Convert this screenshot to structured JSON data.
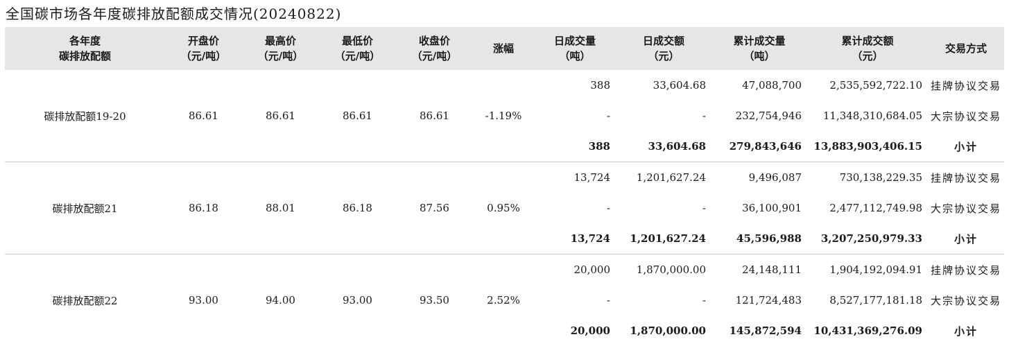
{
  "title": "全国碳市场各年度碳排放配额成交情况(20240822)",
  "header": {
    "c1": [
      "各年度",
      "碳排放配额"
    ],
    "c2": [
      "开盘价",
      "（元/吨）"
    ],
    "c3": [
      "最高价",
      "（元/吨）"
    ],
    "c4": [
      "最低价",
      "（元/吨）"
    ],
    "c5": [
      "收盘价",
      "（元/吨）"
    ],
    "c6": [
      "涨幅"
    ],
    "c7": [
      "日成交量",
      "（吨）"
    ],
    "c8": [
      "日成交额",
      "（元）"
    ],
    "c9": [
      "累计成交量",
      "（吨）"
    ],
    "c10": [
      "累计成交额",
      "（元）"
    ],
    "c11": [
      "交易方式"
    ]
  },
  "groups": [
    {
      "name": "碳排放配额19-20",
      "open": "86.61",
      "high": "86.61",
      "low": "86.61",
      "close": "86.61",
      "change": "-1.19%",
      "rows": [
        {
          "vol": "388",
          "amt": "33,604.68",
          "cum_vol": "47,088,700",
          "cum_amt": "2,535,592,722.10",
          "method": "挂牌协议交易"
        },
        {
          "vol": "-",
          "amt": "-",
          "cum_vol": "232,754,946",
          "cum_amt": "11,348,310,684.05",
          "method": "大宗协议交易"
        },
        {
          "vol": "388",
          "amt": "33,604.68",
          "cum_vol": "279,843,646",
          "cum_amt": "13,883,903,406.15",
          "method": "小计"
        }
      ]
    },
    {
      "name": "碳排放配额21",
      "open": "86.18",
      "high": "88.01",
      "low": "86.18",
      "close": "87.56",
      "change": "0.95%",
      "rows": [
        {
          "vol": "13,724",
          "amt": "1,201,627.24",
          "cum_vol": "9,496,087",
          "cum_amt": "730,138,229.35",
          "method": "挂牌协议交易"
        },
        {
          "vol": "-",
          "amt": "-",
          "cum_vol": "36,100,901",
          "cum_amt": "2,477,112,749.98",
          "method": "大宗协议交易"
        },
        {
          "vol": "13,724",
          "amt": "1,201,627.24",
          "cum_vol": "45,596,988",
          "cum_amt": "3,207,250,979.33",
          "method": "小计"
        }
      ]
    },
    {
      "name": "碳排放配额22",
      "open": "93.00",
      "high": "94.00",
      "low": "93.00",
      "close": "93.50",
      "change": "2.52%",
      "rows": [
        {
          "vol": "20,000",
          "amt": "1,870,000.00",
          "cum_vol": "24,148,111",
          "cum_amt": "1,904,192,094.91",
          "method": "挂牌协议交易"
        },
        {
          "vol": "-",
          "amt": "-",
          "cum_vol": "121,724,483",
          "cum_amt": "8,527,177,181.18",
          "method": "大宗协议交易"
        },
        {
          "vol": "20,000",
          "amt": "1,870,000.00",
          "cum_vol": "145,872,594",
          "cum_amt": "10,431,369,276.09",
          "method": "小计"
        }
      ]
    }
  ]
}
